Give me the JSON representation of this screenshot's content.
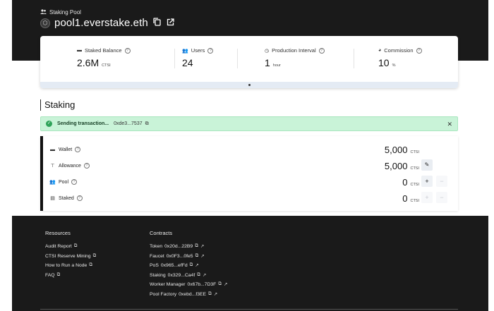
{
  "header": {
    "kicker": "Staking Pool",
    "pool_name": "pool1.everstake.eth",
    "icons": {
      "kicker": "users-icon",
      "logo": "pool-logo-icon",
      "copy": "copy-icon",
      "open": "external-link-icon"
    }
  },
  "stats": [
    {
      "label": "Staked Balance",
      "value": "2.6M",
      "unit": "CTSI",
      "icon": "wallet-icon"
    },
    {
      "label": "Users",
      "value": "24",
      "unit": "",
      "icon": "users-icon"
    },
    {
      "label": "Production Interval",
      "value": "1",
      "unit": "hour",
      "icon": "clock-icon"
    },
    {
      "label": "Commission",
      "value": "10",
      "unit": "%",
      "icon": "pie-chart-icon"
    }
  ],
  "staking": {
    "title": "Staking",
    "alert": {
      "text": "Sending transaction...",
      "hash": "0xde3...7537"
    },
    "rows": [
      {
        "label": "Wallet",
        "value": "5,000",
        "unit": "CTSI",
        "icon": "wallet-icon"
      },
      {
        "label": "Allowance",
        "value": "5,000",
        "unit": "CTSI",
        "icon": "allowance-icon"
      },
      {
        "label": "Pool",
        "value": "0",
        "unit": "CTSI",
        "icon": "users-icon"
      },
      {
        "label": "Staked",
        "value": "0",
        "unit": "CTSI",
        "icon": "stake-icon"
      }
    ],
    "buttons": {
      "plus": "+",
      "minus": "−",
      "edit": "✎"
    }
  },
  "footer": {
    "resources_title": "Resources",
    "resources": [
      "Audit Report",
      "CTSI Reserve Mining",
      "How to Run a Node",
      "FAQ"
    ],
    "contracts_title": "Contracts",
    "contracts": [
      {
        "name": "Token",
        "address": "0x20d...22B9"
      },
      {
        "name": "Faucet",
        "address": "0x0F3...0fe5"
      },
      {
        "name": "PoS",
        "address": "0x965...efFd"
      },
      {
        "name": "Staking",
        "address": "0x329...Ca4f"
      },
      {
        "name": "Worker Manager",
        "address": "0x67b...7D3F"
      },
      {
        "name": "Pool Factory",
        "address": "0xebd...f3EE"
      }
    ]
  },
  "colors": {
    "dark": "#1a1a1a",
    "success_bg": "#c9f3d8",
    "success_icon": "#2fa35a",
    "card_footer": "#e4ebf4"
  }
}
